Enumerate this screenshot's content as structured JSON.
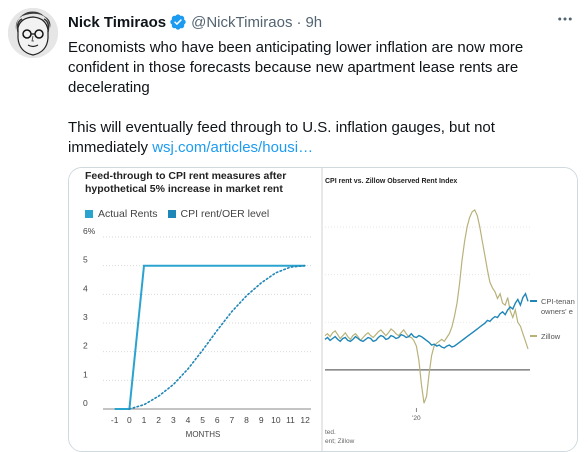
{
  "tweet": {
    "author_name": "Nick Timiraos",
    "handle": "@NickTimiraos",
    "dot": "·",
    "time": "9h",
    "more_icon": "more-icon",
    "paragraph1": "Economists who have been anticipating lower inflation are now more confident in those forecasts because new apartment lease rents are decelerating",
    "paragraph2_text": "This will eventually feed through to U.S. inflation gauges, but not immediately ",
    "link_text": "wsj.com/articles/housi…"
  },
  "colors": {
    "link": "#1d9bf0",
    "actual": "#2aa3cf",
    "cpi": "#1f86b8",
    "zillow": "#b8b27a"
  },
  "media": {
    "left": {
      "title": "Feed-through to CPI rent measures after hypothetical 5% increase in market rent",
      "legend": [
        "Actual Rents",
        "CPI rent/OER level"
      ],
      "chart_data": {
        "type": "line",
        "title": "Feed-through to CPI rent measures after hypothetical 5% increase in market rent",
        "xlabel": "MONTHS",
        "ylabel": "",
        "x": [
          -1,
          0,
          1,
          2,
          3,
          4,
          5,
          6,
          7,
          8,
          9,
          10,
          11,
          12
        ],
        "xticks": [
          "-1",
          "0",
          "1",
          "2",
          "3",
          "4",
          "5",
          "6",
          "7",
          "8",
          "9",
          "10",
          "11",
          "12"
        ],
        "yticks": [
          "0",
          "1",
          "2",
          "3",
          "4",
          "5",
          "6%"
        ],
        "ylim": [
          0,
          6
        ],
        "xlim": [
          -1.8,
          12.4
        ],
        "series": [
          {
            "name": "Actual Rents",
            "style": "solid",
            "points": [
              [
                -1,
                0
              ],
              [
                0,
                0
              ],
              [
                1,
                5
              ],
              [
                12,
                5
              ]
            ]
          },
          {
            "name": "CPI rent/OER level",
            "style": "dotted",
            "points": [
              [
                0,
                0
              ],
              [
                1,
                0.15
              ],
              [
                2,
                0.45
              ],
              [
                3,
                0.85
              ],
              [
                4,
                1.4
              ],
              [
                5,
                2.05
              ],
              [
                6,
                2.75
              ],
              [
                7,
                3.4
              ],
              [
                8,
                3.95
              ],
              [
                9,
                4.4
              ],
              [
                10,
                4.75
              ],
              [
                11,
                4.95
              ],
              [
                12,
                5
              ]
            ]
          }
        ]
      }
    },
    "right": {
      "title": "CPI rent vs. Zillow Observed Rent Index",
      "legend_cpi_line1": "CPI-tenan",
      "legend_cpi_line2": "owners' e",
      "legend_zillow": "Zillow",
      "source_line1": "ted.",
      "source_line2": "ent; Zillow",
      "chart_data": {
        "type": "line",
        "title": "CPI rent vs. Zillow Observed Rent Index",
        "xticks": [
          "'20"
        ],
        "series": [
          {
            "name": "CPI-tenan owners' e",
            "values": [
              3.2,
              3.4,
              3.1,
              3.3,
              3.5,
              3.2,
              3.0,
              3.3,
              3.4,
              3.1,
              3.0,
              3.2,
              3.5,
              3.3,
              3.1,
              3.0,
              3.2,
              3.4,
              3.3,
              3.0,
              3.1,
              3.4,
              3.6,
              3.5,
              3.2,
              3.3,
              3.6,
              3.5,
              3.3,
              3.4,
              3.7,
              3.6,
              3.4,
              3.5,
              3.8,
              3.5,
              3.4,
              3.6,
              3.5,
              3.3,
              3.1,
              2.9,
              2.6,
              2.7,
              2.5,
              2.6,
              2.4,
              2.3,
              2.5,
              2.6,
              2.4,
              2.5,
              2.7,
              2.9,
              3.1,
              3.3,
              3.5,
              3.7,
              3.9,
              4.1,
              4.3,
              4.5,
              4.7,
              4.9,
              5.2,
              5.1,
              5.4,
              5.6,
              5.5,
              5.9,
              6.1,
              5.8,
              6.3,
              6.6,
              6.4,
              7.0,
              7.4,
              6.8,
              7.6,
              8.0,
              7.2
            ]
          },
          {
            "name": "Zillow",
            "values": [
              3.6,
              3.8,
              3.5,
              3.9,
              4.1,
              3.7,
              3.3,
              3.6,
              3.9,
              3.5,
              3.2,
              3.6,
              3.8,
              3.5,
              3.1,
              3.4,
              3.7,
              3.9,
              3.6,
              3.4,
              3.7,
              4.0,
              4.2,
              3.9,
              3.6,
              3.9,
              4.3,
              4.1,
              3.8,
              3.6,
              3.9,
              4.2,
              3.8,
              3.5,
              3.4,
              3.1,
              2.5,
              1.0,
              -1.5,
              -3.5,
              -2.8,
              -0.5,
              1.5,
              2.5,
              2.8,
              3.0,
              3.2,
              3.0,
              3.4,
              3.8,
              4.5,
              5.6,
              7.0,
              9.0,
              11.5,
              13.5,
              15.0,
              16.0,
              16.6,
              16.8,
              16.2,
              15.0,
              13.5,
              12.0,
              10.5,
              9.2,
              8.6,
              8.2,
              7.5,
              8.0,
              7.0,
              6.8,
              7.6,
              6.2,
              5.5,
              6.3,
              5.0,
              4.6,
              3.8,
              3.0,
              2.2
            ]
          }
        ]
      }
    }
  }
}
